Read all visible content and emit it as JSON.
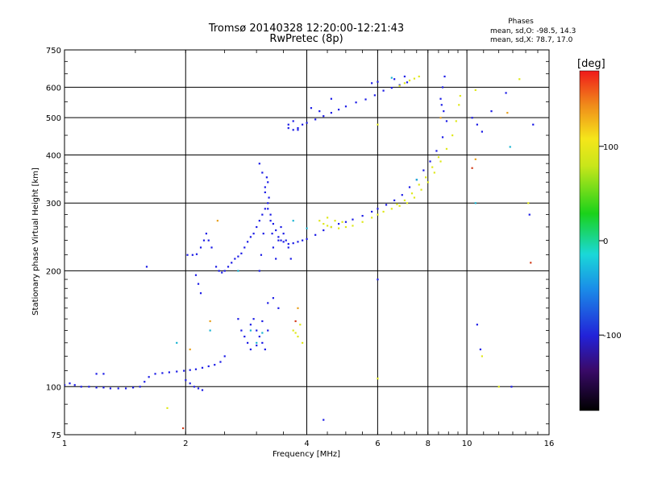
{
  "chart_data": {
    "type": "scatter",
    "title": "Tromsø 20140328 12:20:00-12:21:43",
    "subtitle": "RwPretec (8p)",
    "xlabel": "Frequency [MHz]",
    "ylabel": "Stationary phase Virtual Height [km]",
    "x_scale": "log",
    "y_scale": "log",
    "xlim": [
      1,
      16
    ],
    "ylim": [
      75,
      750
    ],
    "x_ticks": [
      1,
      2,
      4,
      6,
      8,
      10,
      16
    ],
    "x_tick_labels": [
      "1",
      "2",
      "4",
      "6",
      "8",
      "10",
      "16"
    ],
    "y_ticks": [
      75,
      100,
      200,
      300,
      400,
      500,
      600,
      750
    ],
    "y_tick_labels": [
      "75",
      "100",
      "200",
      "300",
      "400",
      "500",
      "600",
      "750"
    ],
    "grid": true,
    "legend": {
      "title": "Phases",
      "lines": [
        "mean, sd,O: -98.5, 14.3",
        "mean, sd,X:  78.7, 17.0"
      ]
    },
    "colorbar": {
      "label": "[deg]",
      "range": [
        -180,
        180
      ],
      "ticks": [
        100,
        0,
        -100
      ],
      "tick_labels": [
        "100",
        "0",
        "-100"
      ]
    },
    "series": [
      {
        "mode": "O",
        "phase_mean": -98.5,
        "phase_sd": 14.3,
        "color": "#1a1ae6",
        "points": [
          [
            1.0,
            101
          ],
          [
            1.03,
            102
          ],
          [
            1.06,
            101
          ],
          [
            1.1,
            100
          ],
          [
            1.15,
            100
          ],
          [
            1.2,
            99.5
          ],
          [
            1.25,
            99.5
          ],
          [
            1.3,
            99
          ],
          [
            1.36,
            99
          ],
          [
            1.42,
            99
          ],
          [
            1.48,
            99.5
          ],
          [
            1.54,
            100
          ],
          [
            1.58,
            103
          ],
          [
            1.62,
            106
          ],
          [
            1.68,
            108
          ],
          [
            1.75,
            108.5
          ],
          [
            1.82,
            109
          ],
          [
            1.9,
            109.5
          ],
          [
            1.98,
            110
          ],
          [
            2.05,
            110.5
          ],
          [
            2.12,
            111
          ],
          [
            2.2,
            112
          ],
          [
            2.28,
            113
          ],
          [
            2.36,
            114
          ],
          [
            2.44,
            116
          ],
          [
            2.5,
            120
          ],
          [
            1.2,
            108
          ],
          [
            1.25,
            108
          ],
          [
            1.6,
            205
          ],
          [
            2.0,
            104
          ],
          [
            2.05,
            102
          ],
          [
            2.1,
            100
          ],
          [
            2.15,
            99
          ],
          [
            2.2,
            98
          ],
          [
            2.02,
            220
          ],
          [
            2.08,
            220
          ],
          [
            2.13,
            221
          ],
          [
            2.18,
            230
          ],
          [
            2.22,
            240
          ],
          [
            2.25,
            250
          ],
          [
            2.28,
            240
          ],
          [
            2.32,
            230
          ],
          [
            2.12,
            195
          ],
          [
            2.15,
            185
          ],
          [
            2.18,
            175
          ],
          [
            2.38,
            205
          ],
          [
            2.42,
            200
          ],
          [
            2.46,
            198
          ],
          [
            2.5,
            200
          ],
          [
            2.55,
            205
          ],
          [
            2.6,
            210
          ],
          [
            2.65,
            215
          ],
          [
            2.7,
            218
          ],
          [
            2.75,
            222
          ],
          [
            2.8,
            230
          ],
          [
            2.85,
            238
          ],
          [
            2.9,
            245
          ],
          [
            2.95,
            250
          ],
          [
            3.0,
            260
          ],
          [
            3.05,
            270
          ],
          [
            3.1,
            280
          ],
          [
            3.15,
            290
          ],
          [
            3.2,
            300
          ],
          [
            3.05,
            200
          ],
          [
            3.08,
            220
          ],
          [
            3.12,
            250
          ],
          [
            3.15,
            320
          ],
          [
            3.18,
            350
          ],
          [
            3.2,
            340
          ],
          [
            3.22,
            310
          ],
          [
            3.25,
            270
          ],
          [
            3.28,
            250
          ],
          [
            3.3,
            230
          ],
          [
            3.35,
            215
          ],
          [
            3.4,
            240
          ],
          [
            3.45,
            260
          ],
          [
            3.5,
            250
          ],
          [
            3.55,
            240
          ],
          [
            3.6,
            230
          ],
          [
            3.65,
            215
          ],
          [
            3.05,
            380
          ],
          [
            3.1,
            360
          ],
          [
            3.15,
            330
          ],
          [
            3.2,
            290
          ],
          [
            3.25,
            280
          ],
          [
            3.3,
            265
          ],
          [
            3.35,
            255
          ],
          [
            3.4,
            245
          ],
          [
            3.45,
            240
          ],
          [
            3.5,
            238
          ],
          [
            3.6,
            235
          ],
          [
            3.7,
            236
          ],
          [
            3.8,
            238
          ],
          [
            3.9,
            240
          ],
          [
            4.0,
            242
          ],
          [
            4.2,
            248
          ],
          [
            4.4,
            255
          ],
          [
            4.6,
            260
          ],
          [
            4.8,
            265
          ],
          [
            5.0,
            268
          ],
          [
            5.2,
            272
          ],
          [
            5.5,
            278
          ],
          [
            5.8,
            285
          ],
          [
            6.0,
            290
          ],
          [
            6.3,
            297
          ],
          [
            6.6,
            305
          ],
          [
            6.9,
            315
          ],
          [
            7.2,
            330
          ],
          [
            7.5,
            345
          ],
          [
            7.8,
            365
          ],
          [
            8.1,
            385
          ],
          [
            8.4,
            410
          ],
          [
            8.7,
            445
          ],
          [
            8.9,
            490
          ],
          [
            3.3,
            170
          ],
          [
            3.4,
            160
          ],
          [
            3.2,
            165
          ],
          [
            2.7,
            150
          ],
          [
            2.75,
            140
          ],
          [
            2.8,
            135
          ],
          [
            2.85,
            130
          ],
          [
            2.9,
            145
          ],
          [
            2.95,
            150
          ],
          [
            3.0,
            140
          ],
          [
            3.05,
            135
          ],
          [
            3.1,
            130
          ],
          [
            3.15,
            125
          ],
          [
            3.2,
            140
          ],
          [
            2.9,
            125
          ],
          [
            3.0,
            128
          ],
          [
            3.1,
            148
          ],
          [
            3.6,
            470
          ],
          [
            3.7,
            465
          ],
          [
            3.8,
            470
          ],
          [
            3.9,
            480
          ],
          [
            4.0,
            485
          ],
          [
            4.2,
            495
          ],
          [
            4.4,
            505
          ],
          [
            4.6,
            515
          ],
          [
            4.8,
            525
          ],
          [
            5.0,
            535
          ],
          [
            5.3,
            548
          ],
          [
            5.6,
            558
          ],
          [
            5.9,
            572
          ],
          [
            6.2,
            588
          ],
          [
            6.5,
            598
          ],
          [
            6.8,
            608
          ],
          [
            7.1,
            618
          ],
          [
            3.6,
            480
          ],
          [
            3.7,
            490
          ],
          [
            3.8,
            465
          ],
          [
            4.1,
            530
          ],
          [
            4.3,
            520
          ],
          [
            4.6,
            560
          ],
          [
            5.8,
            615
          ],
          [
            6.0,
            620
          ],
          [
            6.6,
            630
          ],
          [
            7.0,
            640
          ],
          [
            8.6,
            560
          ],
          [
            8.7,
            600
          ],
          [
            8.8,
            640
          ],
          [
            8.75,
            520
          ],
          [
            8.65,
            540
          ],
          [
            6.0,
            190
          ],
          [
            10.3,
            500
          ],
          [
            10.6,
            480
          ],
          [
            10.9,
            460
          ],
          [
            11.5,
            520
          ],
          [
            12.5,
            580
          ],
          [
            14.3,
            280
          ],
          [
            14.6,
            480
          ],
          [
            12.9,
            100
          ],
          [
            10.8,
            125
          ],
          [
            10.6,
            145
          ],
          [
            4.4,
            82
          ]
        ]
      },
      {
        "mode": "X",
        "phase_mean": 78.7,
        "phase_sd": 17.0,
        "color": "#dfe81a",
        "points": [
          [
            4.3,
            270
          ],
          [
            4.4,
            265
          ],
          [
            4.5,
            262
          ],
          [
            4.6,
            260
          ],
          [
            4.8,
            258
          ],
          [
            5.0,
            260
          ],
          [
            5.2,
            262
          ],
          [
            5.5,
            268
          ],
          [
            5.8,
            275
          ],
          [
            6.0,
            280
          ],
          [
            6.2,
            285
          ],
          [
            6.5,
            290
          ],
          [
            6.8,
            295
          ],
          [
            7.1,
            300
          ],
          [
            7.4,
            310
          ],
          [
            7.7,
            325
          ],
          [
            8.0,
            340
          ],
          [
            8.3,
            360
          ],
          [
            8.6,
            385
          ],
          [
            8.9,
            415
          ],
          [
            9.2,
            450
          ],
          [
            9.4,
            490
          ],
          [
            9.55,
            540
          ],
          [
            9.62,
            570
          ],
          [
            6.7,
            298
          ],
          [
            7.0,
            305
          ],
          [
            7.3,
            318
          ],
          [
            7.6,
            335
          ],
          [
            7.9,
            350
          ],
          [
            8.2,
            372
          ],
          [
            8.5,
            395
          ],
          [
            4.5,
            275
          ],
          [
            4.7,
            270
          ],
          [
            4.9,
            268
          ],
          [
            3.7,
            140
          ],
          [
            3.8,
            135
          ],
          [
            3.9,
            130
          ],
          [
            3.85,
            145
          ],
          [
            3.75,
            138
          ],
          [
            6.8,
            605
          ],
          [
            7.0,
            615
          ],
          [
            7.2,
            625
          ],
          [
            7.4,
            632
          ],
          [
            7.6,
            640
          ],
          [
            1.8,
            88
          ],
          [
            6.0,
            480
          ],
          [
            10.5,
            590
          ],
          [
            13.5,
            630
          ],
          [
            12.0,
            100
          ],
          [
            14.2,
            300
          ],
          [
            10.9,
            120
          ],
          [
            6.0,
            105
          ]
        ]
      },
      {
        "mode": "mixed",
        "color": "#1ab4d2",
        "points": [
          [
            2.7,
            200
          ],
          [
            2.9,
            140
          ],
          [
            3.0,
            130
          ],
          [
            3.1,
            138
          ],
          [
            6.5,
            635
          ],
          [
            7.5,
            345
          ],
          [
            4.0,
            258
          ],
          [
            3.7,
            270
          ],
          [
            1.9,
            130
          ],
          [
            2.3,
            140
          ],
          [
            10.5,
            300
          ],
          [
            12.8,
            420
          ]
        ]
      },
      {
        "mode": "mixed",
        "color": "#d23c1a",
        "points": [
          [
            3.75,
            148
          ],
          [
            10.3,
            370
          ],
          [
            14.4,
            210
          ],
          [
            1.97,
            78
          ]
        ]
      },
      {
        "mode": "mixed",
        "color": "#e8a01a",
        "points": [
          [
            2.3,
            148
          ],
          [
            2.4,
            270
          ],
          [
            3.8,
            160
          ],
          [
            2.05,
            125
          ],
          [
            8.6,
            500
          ],
          [
            10.5,
            390
          ],
          [
            12.6,
            515
          ]
        ]
      }
    ]
  }
}
